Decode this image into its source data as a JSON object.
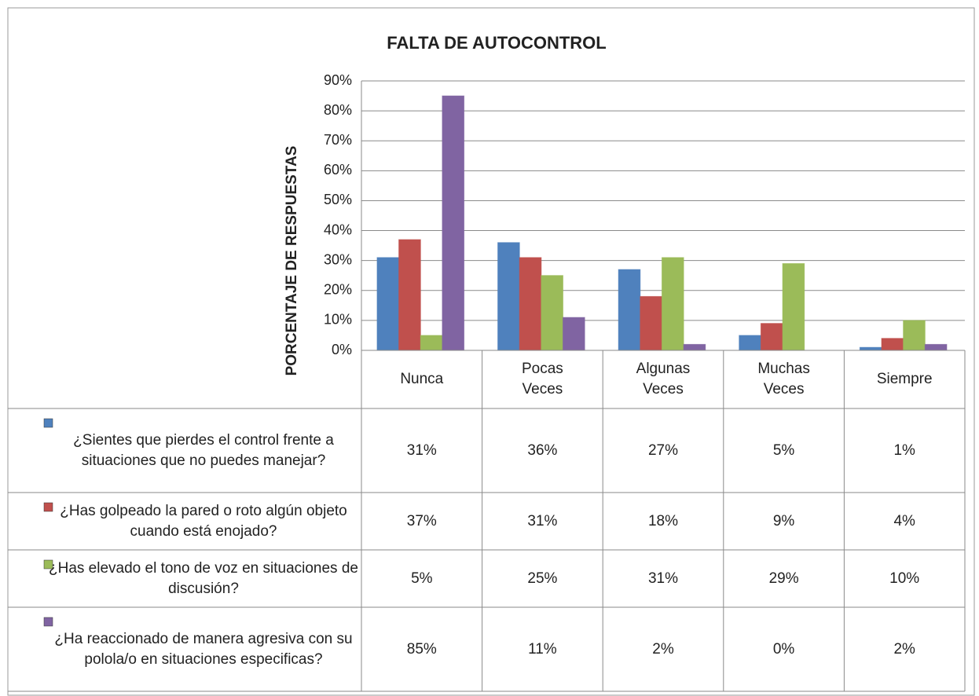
{
  "chart_data": {
    "type": "bar",
    "title": "FALTA DE AUTOCONTROL",
    "y_label": "PORCENTAJE DE RESPUESTAS",
    "categories": [
      "Nunca",
      "Pocas Veces",
      "Algunas Veces",
      "Muchas Veces",
      "Siempre"
    ],
    "series": [
      {
        "name": "¿Sientes que pierdes el control frente a situaciones que no puedes manejar?",
        "color": "#4f81bd",
        "values": [
          31,
          36,
          27,
          5,
          1
        ],
        "value_labels": [
          "31%",
          "36%",
          "27%",
          "5%",
          "1%"
        ]
      },
      {
        "name": "¿Has golpeado la pared o roto algún objeto cuando está enojado?",
        "color": "#c0504d",
        "values": [
          37,
          31,
          18,
          9,
          4
        ],
        "value_labels": [
          "37%",
          "31%",
          "18%",
          "9%",
          "4%"
        ]
      },
      {
        "name": "¿Has elevado el tono de voz en situaciones de discusión?",
        "color": "#9bbb59",
        "values": [
          5,
          25,
          31,
          29,
          10
        ],
        "value_labels": [
          "5%",
          "25%",
          "31%",
          "29%",
          "10%"
        ]
      },
      {
        "name": "¿Ha reaccionado de manera agresiva con su polola/o en situaciones especificas?",
        "color": "#8064a2",
        "values": [
          85,
          11,
          2,
          0,
          2
        ],
        "value_labels": [
          "85%",
          "11%",
          "2%",
          "0%",
          "2%"
        ]
      }
    ],
    "ylim": [
      0,
      90
    ],
    "yticks": [
      {
        "value": 0,
        "label": "0%"
      },
      {
        "value": 10,
        "label": "10%"
      },
      {
        "value": 20,
        "label": "20%"
      },
      {
        "value": 30,
        "label": "30%"
      },
      {
        "value": 40,
        "label": "40%"
      },
      {
        "value": 50,
        "label": "50%"
      },
      {
        "value": 60,
        "label": "60%"
      },
      {
        "value": 70,
        "label": "70%"
      },
      {
        "value": 80,
        "label": "80%"
      },
      {
        "value": 90,
        "label": "90%"
      }
    ],
    "grid": true
  }
}
